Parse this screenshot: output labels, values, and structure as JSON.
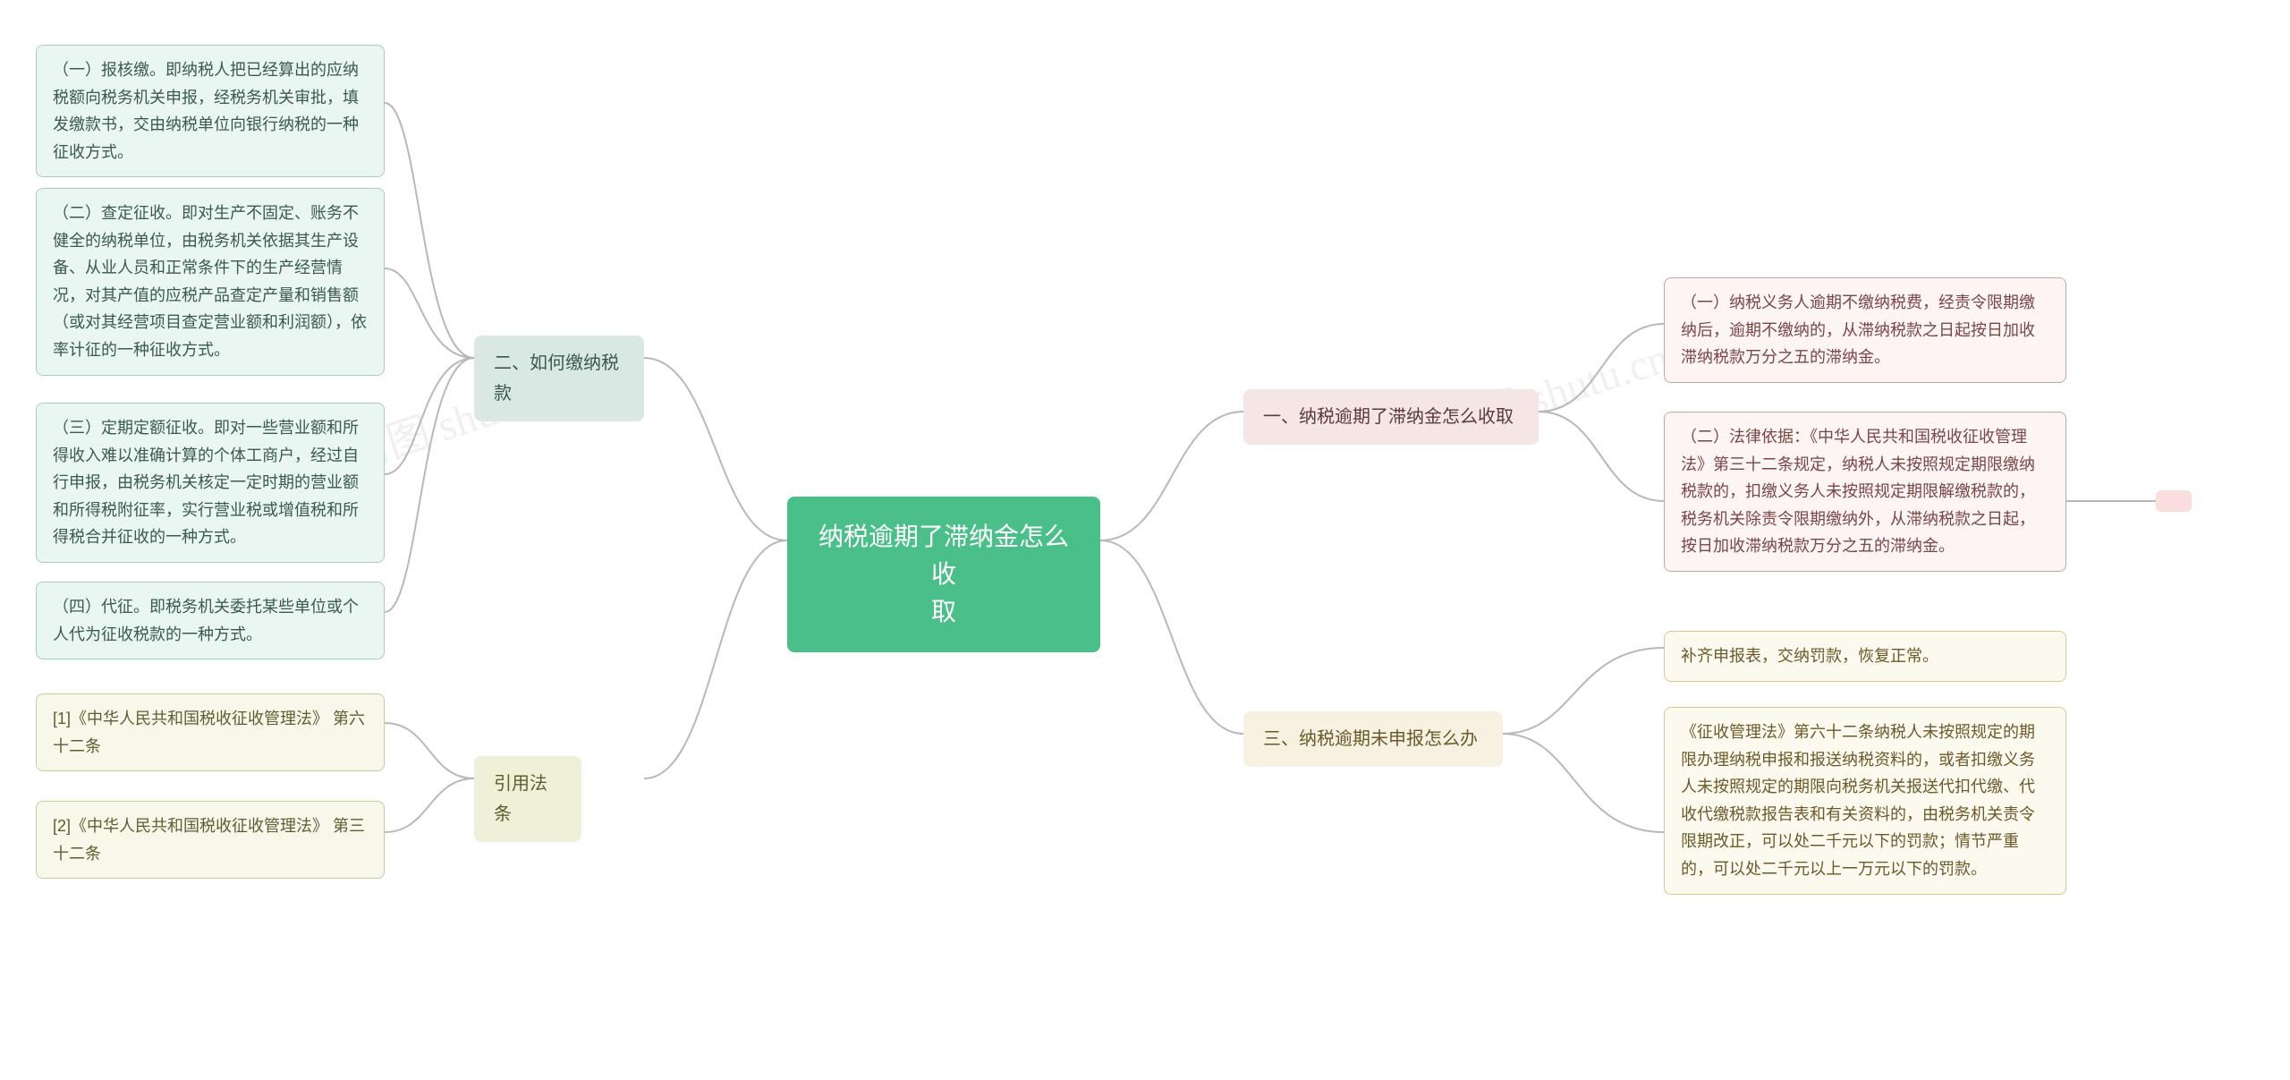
{
  "watermarks": {
    "left": "树图 shutu.cn",
    "right": "树图 shutu.cn"
  },
  "center": {
    "text": "纳税逾期了滞纳金怎么收\n取",
    "bg": "#4bbf8a",
    "fg": "#ffffff"
  },
  "branches": {
    "b1": {
      "label": "一、纳税逾期了滞纳金怎么收取",
      "bg": "#f6e5e5",
      "fg": "#5a3a3a",
      "leaves": {
        "l1": {
          "text": "（一）纳税义务人逾期不缴纳税费，经责令限期缴纳后，逾期不缴纳的，从滞纳税款之日起按日加收滞纳税款万分之五的滞纳金。",
          "bg": "#fdf4f4",
          "border": "#caa5a5",
          "fg": "#7a4646"
        },
        "l2": {
          "text": "（二）法律依据：《中华人民共和国税收征收管理法》第三十二条规定，纳税人未按照规定期限缴纳税款的，扣缴义务人未按照规定期限解缴税款的，税务机关除责令限期缴纳外，从滞纳税款之日起，按日加收滞纳税款万分之五的滞纳金。",
          "bg": "#fdf4f4",
          "border": "#caa5a5",
          "fg": "#7a4646"
        }
      }
    },
    "b2": {
      "label": "二、如何缴纳税款",
      "bg": "#d9e8e2",
      "fg": "#3a5a50",
      "leaves": {
        "l1": {
          "text": "（一）报核缴。即纳税人把已经算出的应纳税额向税务机关申报，经税务机关审批，填发缴款书，交由纳税单位向银行纳税的一种征收方式。",
          "bg": "#eaf6f1",
          "border": "#a8cdc0",
          "fg": "#3a5a50"
        },
        "l2": {
          "text": "（二）查定征收。即对生产不固定、账务不健全的纳税单位，由税务机关依据其生产设备、从业人员和正常条件下的生产经营情况，对其产值的应税产品查定产量和销售额（或对其经营项目查定营业额和利润额），依率计征的一种征收方式。",
          "bg": "#eaf6f1",
          "border": "#a8cdc0",
          "fg": "#3a5a50"
        },
        "l3": {
          "text": "（三）定期定额征收。即对一些营业额和所得收入难以准确计算的个体工商户，经过自行申报，由税务机关核定一定时期的营业额和所得税附征率，实行营业税或增值税和所得税合并征收的一种方式。",
          "bg": "#eaf6f1",
          "border": "#a8cdc0",
          "fg": "#3a5a50"
        },
        "l4": {
          "text": "（四）代征。即税务机关委托某些单位或个人代为征收税款的一种方式。",
          "bg": "#eaf6f1",
          "border": "#a8cdc0",
          "fg": "#3a5a50"
        }
      }
    },
    "b3": {
      "label": "三、纳税逾期未申报怎么办",
      "bg": "#f6f1e1",
      "fg": "#6a5a2a",
      "leaves": {
        "l1": {
          "text": "补齐申报表，交纳罚款，恢复正常。",
          "bg": "#fcf9ef",
          "border": "#d6c890",
          "fg": "#6a5a2a"
        },
        "l2": {
          "text": "《征收管理法》第六十二条纳税人未按照规定的期限办理纳税申报和报送纳税资料的，或者扣缴义务人未按照规定的期限向税务机关报送代扣代缴、代收代缴税款报告表和有关资料的，由税务机关责令限期改正，可以处二千元以下的罚款；情节严重的，可以处二千元以上一万元以下的罚款。",
          "bg": "#fcf9ef",
          "border": "#d6c890",
          "fg": "#6a5a2a"
        }
      }
    },
    "b4": {
      "label": "引用法条",
      "bg": "#eef0d8",
      "fg": "#5a6030",
      "leaves": {
        "l1": {
          "text": "[1]《中华人民共和国税收征收管理法》 第六十二条",
          "bg": "#f7f8ea",
          "border": "#c6cc9c",
          "fg": "#5a6030"
        },
        "l2": {
          "text": "[2]《中华人民共和国税收征收管理法》 第三十二条",
          "bg": "#f7f8ea",
          "border": "#c6cc9c",
          "fg": "#5a6030"
        }
      }
    }
  },
  "stub": {
    "bg": "#f9dede"
  },
  "connectors": {
    "stroke": "#b8b8b8",
    "width": 2
  }
}
